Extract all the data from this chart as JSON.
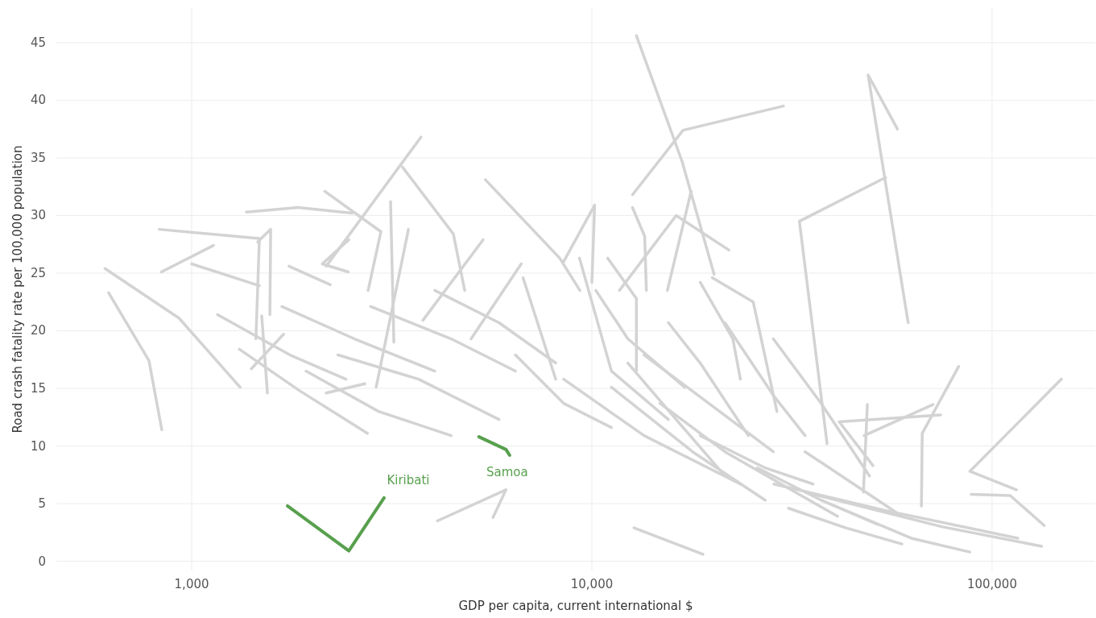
{
  "chart_data": {
    "type": "line",
    "xlabel": "GDP per capita, current international $",
    "ylabel": "Road crash fatality rate per 100,000 population",
    "log": "x",
    "grid": true,
    "marker": "none",
    "line_style": "solid",
    "xlim": [
      459,
      181000
    ],
    "ylim": [
      -0.8,
      48
    ],
    "xticks": [
      {
        "value": 1000,
        "label": "1,000"
      },
      {
        "value": 10000,
        "label": "10,000"
      },
      {
        "value": 100000,
        "label": "100,000"
      }
    ],
    "yticks": [
      0,
      5,
      10,
      15,
      20,
      25,
      30,
      35,
      40,
      45
    ],
    "series": [
      {
        "color": "#d3d3d3",
        "x": [
          607,
          929,
          1321
        ],
        "values": [
          25.4,
          21.1,
          15.1
        ]
      },
      {
        "color": "#d3d3d3",
        "x": [
          620,
          782,
          842
        ],
        "values": [
          23.3,
          17.4,
          11.4
        ]
      },
      {
        "color": "#d3d3d3",
        "x": [
          840,
          1133
        ],
        "values": [
          25.1,
          27.4
        ]
      },
      {
        "color": "#d3d3d3",
        "x": [
          830,
          1476,
          1447
        ],
        "values": [
          28.8,
          28.0,
          19.3
        ]
      },
      {
        "color": "#d3d3d3",
        "x": [
          1370,
          1842,
          2515
        ],
        "values": [
          30.3,
          30.7,
          30.2
        ]
      },
      {
        "color": "#d3d3d3",
        "x": [
          1315,
          1860,
          2748
        ],
        "values": [
          18.4,
          14.8,
          11.1
        ]
      },
      {
        "color": "#d3d3d3",
        "x": [
          1409,
          1697
        ],
        "values": [
          16.7,
          19.7
        ]
      },
      {
        "color": "#d3d3d3",
        "x": [
          1496,
          1546
        ],
        "values": [
          21.3,
          14.6
        ]
      },
      {
        "color": "#d3d3d3",
        "x": [
          2167,
          2708
        ],
        "values": [
          14.6,
          15.4
        ]
      },
      {
        "color": "#d3d3d3",
        "x": [
          2168,
          3740
        ],
        "values": [
          25.6,
          36.8
        ]
      },
      {
        "color": "#d3d3d3",
        "x": [
          3363,
          4506,
          4810
        ],
        "values": [
          34.2,
          28.4,
          23.5
        ]
      },
      {
        "color": "#d3d3d3",
        "x": [
          5420,
          8310,
          9330
        ],
        "values": [
          33.1,
          26.3,
          23.5
        ]
      },
      {
        "color": "#d3d3d3",
        "x": [
          8500,
          10160,
          10000
        ],
        "values": [
          26.0,
          30.9,
          24.2
        ]
      },
      {
        "color": "#d3d3d3",
        "x": [
          12920,
          16800,
          20200
        ],
        "values": [
          45.6,
          34.7,
          24.9
        ]
      },
      {
        "color": "#d3d3d3",
        "x": [
          30100,
          16900,
          12630
        ],
        "values": [
          39.5,
          37.4,
          31.8
        ]
      },
      {
        "color": "#d3d3d3",
        "x": [
          12630,
          13550,
          13680
        ],
        "values": [
          30.7,
          28.2,
          23.5
        ]
      },
      {
        "color": "#d3d3d3",
        "x": [
          17700,
          15440
        ],
        "values": [
          32.1,
          23.5
        ]
      },
      {
        "color": "#d3d3d3",
        "x": [
          11720,
          16240,
          22000
        ],
        "values": [
          23.5,
          30.0,
          27.0
        ]
      },
      {
        "color": "#d3d3d3",
        "x": [
          58000,
          49000,
          61700
        ],
        "values": [
          37.5,
          42.2,
          20.7
        ]
      },
      {
        "color": "#d3d3d3",
        "x": [
          54200,
          33000,
          38700
        ],
        "values": [
          33.3,
          29.5,
          10.2
        ]
      },
      {
        "color": "#d3d3d3",
        "x": [
          149000,
          88000,
          115000
        ],
        "values": [
          15.8,
          7.8,
          6.2
        ]
      },
      {
        "color": "#d3d3d3",
        "x": [
          88700,
          111000,
          135000
        ],
        "values": [
          5.8,
          5.7,
          3.1
        ]
      },
      {
        "color": "#d3d3d3",
        "x": [
          82500,
          66900,
          66600
        ],
        "values": [
          16.9,
          11.1,
          4.8
        ]
      },
      {
        "color": "#d3d3d3",
        "x": [
          74400,
          41500,
          50400
        ],
        "values": [
          12.7,
          12.1,
          8.3
        ]
      },
      {
        "color": "#d3d3d3",
        "x": [
          48800,
          47700
        ],
        "values": [
          13.6,
          6.0
        ]
      },
      {
        "color": "#d3d3d3",
        "x": [
          47900,
          71200
        ],
        "values": [
          10.9,
          13.6
        ]
      },
      {
        "color": "#d3d3d3",
        "x": [
          28500,
          54200,
          116000
        ],
        "values": [
          6.7,
          4.4,
          2.0
        ]
      },
      {
        "color": "#d3d3d3",
        "x": [
          34100,
          74800,
          133000
        ],
        "values": [
          6.0,
          3.0,
          1.3
        ]
      },
      {
        "color": "#d3d3d3",
        "x": [
          37400,
          62800,
          88000
        ],
        "values": [
          5.3,
          2.0,
          0.8
        ]
      },
      {
        "color": "#d3d3d3",
        "x": [
          12740,
          18950
        ],
        "values": [
          2.9,
          0.6
        ]
      },
      {
        "color": "#d3d3d3",
        "x": [
          4110,
          6100,
          5660
        ],
        "values": [
          3.5,
          6.2,
          3.8
        ]
      },
      {
        "color": "#d3d3d3",
        "x": [
          1462,
          1575,
          1568
        ],
        "values": [
          27.7,
          28.8,
          21.4
        ]
      },
      {
        "color": "#d3d3d3",
        "x": [
          3140,
          3200
        ],
        "values": [
          31.2,
          19.0
        ]
      },
      {
        "color": "#d3d3d3",
        "x": [
          3480,
          2890
        ],
        "values": [
          28.8,
          15.1
        ]
      },
      {
        "color": "#d3d3d3",
        "x": [
          2150,
          2970,
          2760
        ],
        "values": [
          32.1,
          28.6,
          23.5
        ]
      },
      {
        "color": "#d3d3d3",
        "x": [
          2470,
          2120,
          2460
        ],
        "values": [
          27.9,
          25.8,
          25.1
        ]
      },
      {
        "color": "#d3d3d3",
        "x": [
          1000,
          1476
        ],
        "values": [
          25.8,
          23.9
        ]
      },
      {
        "color": "#d3d3d3",
        "x": [
          1750,
          2220
        ],
        "values": [
          25.6,
          24.0
        ]
      },
      {
        "color": "#d3d3d3",
        "x": [
          4990,
          6660
        ],
        "values": [
          19.3,
          25.8
        ]
      },
      {
        "color": "#d3d3d3",
        "x": [
          3780,
          5350
        ],
        "values": [
          20.9,
          27.9
        ]
      },
      {
        "color": "#d3d3d3",
        "x": [
          6730,
          8120
        ],
        "values": [
          24.6,
          15.8
        ]
      },
      {
        "color": "#d3d3d3",
        "x": [
          9310,
          11190,
          15530
        ],
        "values": [
          26.3,
          16.5,
          12.3
        ]
      },
      {
        "color": "#d3d3d3",
        "x": [
          10950,
          12920,
          12920
        ],
        "values": [
          26.3,
          22.8,
          16.5
        ]
      },
      {
        "color": "#d3d3d3",
        "x": [
          18650,
          22500,
          23500
        ],
        "values": [
          24.2,
          19.3,
          15.8
        ]
      },
      {
        "color": "#d3d3d3",
        "x": [
          20000,
          25300,
          29000
        ],
        "values": [
          24.6,
          22.5,
          13.0
        ]
      },
      {
        "color": "#d3d3d3",
        "x": [
          21500,
          28400,
          34100
        ],
        "values": [
          20.7,
          14.4,
          10.9
        ]
      },
      {
        "color": "#d3d3d3",
        "x": [
          15530,
          18650,
          24600
        ],
        "values": [
          20.7,
          17.2,
          10.9
        ]
      },
      {
        "color": "#d3d3d3",
        "x": [
          12300,
          16240,
          21500
        ],
        "values": [
          17.2,
          12.3,
          7.4
        ]
      },
      {
        "color": "#d3d3d3",
        "x": [
          11190,
          17850,
          27100
        ],
        "values": [
          15.1,
          9.5,
          5.3
        ]
      },
      {
        "color": "#d3d3d3",
        "x": [
          14800,
          21500,
          41100
        ],
        "values": [
          13.7,
          9.5,
          3.9
        ]
      },
      {
        "color": "#d3d3d3",
        "x": [
          8500,
          13500,
          23500
        ],
        "values": [
          15.8,
          10.9,
          6.7
        ]
      },
      {
        "color": "#d3d3d3",
        "x": [
          6440,
          8500,
          11190
        ],
        "values": [
          17.9,
          13.7,
          11.6
        ]
      },
      {
        "color": "#d3d3d3",
        "x": [
          2320,
          3690,
          5860
        ],
        "values": [
          17.9,
          15.8,
          12.3
        ]
      },
      {
        "color": "#d3d3d3",
        "x": [
          1680,
          2550,
          4050
        ],
        "values": [
          22.1,
          19.3,
          16.5
        ]
      },
      {
        "color": "#d3d3d3",
        "x": [
          1160,
          1760,
          2430
        ],
        "values": [
          21.4,
          17.9,
          15.8
        ]
      },
      {
        "color": "#d3d3d3",
        "x": [
          1930,
          2930,
          4450
        ],
        "values": [
          16.5,
          13.0,
          10.9
        ]
      },
      {
        "color": "#d3d3d3",
        "x": [
          2800,
          4450,
          6440
        ],
        "values": [
          22.1,
          19.3,
          16.5
        ]
      },
      {
        "color": "#d3d3d3",
        "x": [
          4050,
          5860,
          8120
        ],
        "values": [
          23.5,
          20.7,
          17.2
        ]
      },
      {
        "color": "#d3d3d3",
        "x": [
          28400,
          37400,
          49400
        ],
        "values": [
          19.3,
          13.7,
          7.4
        ]
      },
      {
        "color": "#d3d3d3",
        "x": [
          34100,
          45100,
          59500
        ],
        "values": [
          9.5,
          6.7,
          3.9
        ]
      },
      {
        "color": "#d3d3d3",
        "x": [
          25900,
          37400,
          51800
        ],
        "values": [
          8.1,
          5.3,
          3.2
        ]
      },
      {
        "color": "#d3d3d3",
        "x": [
          31000,
          43100,
          59500
        ],
        "values": [
          4.6,
          2.9,
          1.5
        ]
      },
      {
        "color": "#d3d3d3",
        "x": [
          18650,
          27100,
          35700
        ],
        "values": [
          10.9,
          8.1,
          6.7
        ]
      },
      {
        "color": "#d3d3d3",
        "x": [
          13500,
          19600,
          28400
        ],
        "values": [
          17.9,
          13.7,
          9.5
        ]
      },
      {
        "color": "#d3d3d3",
        "x": [
          10230,
          12300,
          17050
        ],
        "values": [
          23.5,
          19.3,
          15.1
        ]
      },
      {
        "name": "Kiribati",
        "color": "#58a04e",
        "x": [
          1735,
          2470,
          3025
        ],
        "values": [
          4.8,
          0.9,
          5.5
        ]
      },
      {
        "name": "Samoa",
        "color": "#58a04e",
        "x": [
          5220,
          6100,
          6230
        ],
        "values": [
          10.8,
          9.7,
          9.2
        ]
      }
    ]
  }
}
